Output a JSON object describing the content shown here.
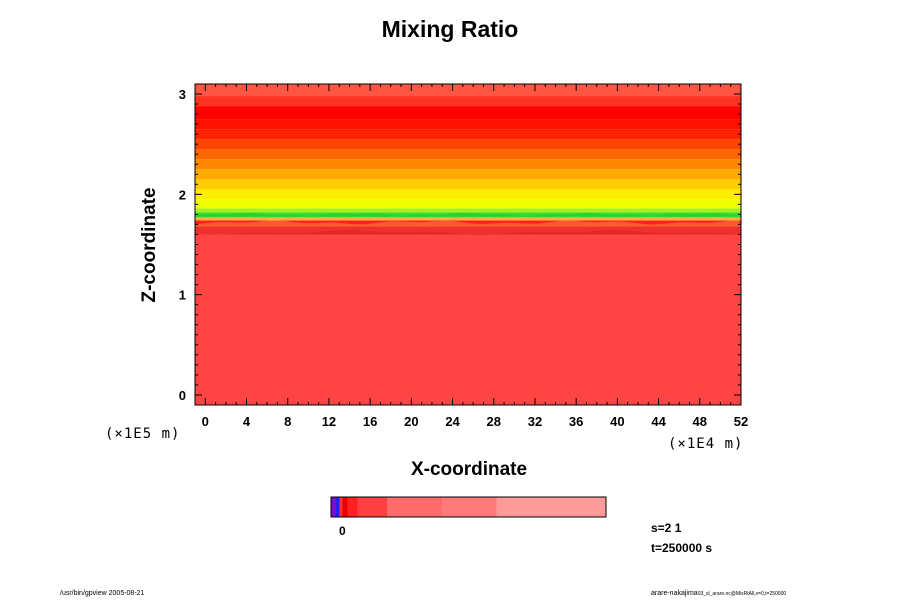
{
  "chart_data": {
    "type": "heatmap",
    "title": "Mixing Ratio",
    "xlabel": "X-coordinate",
    "ylabel": "Z-coordinate",
    "x_unit": "(×1E4 m)",
    "y_unit": "(×1E5 m)",
    "xlim": [
      -1,
      52
    ],
    "ylim": [
      -0.1,
      3.1
    ],
    "x_ticks": [
      "0",
      "4",
      "8",
      "12",
      "16",
      "20",
      "24",
      "28",
      "32",
      "36",
      "40",
      "44",
      "48",
      "52"
    ],
    "y_ticks": [
      "0",
      "1",
      "2",
      "3"
    ],
    "layers": [
      {
        "z": [
          -0.1,
          1.6
        ],
        "color": "#ff4444"
      },
      {
        "z": [
          1.6,
          1.68
        ],
        "color": "#f03030"
      },
      {
        "z": [
          1.68,
          1.74
        ],
        "color": "#ff2020"
      },
      {
        "z": [
          1.74,
          1.77
        ],
        "color": "#ffb03c"
      },
      {
        "z": [
          1.77,
          1.82
        ],
        "color": "#33dd33"
      },
      {
        "z": [
          1.82,
          1.86
        ],
        "color": "#aaee22"
      },
      {
        "z": [
          1.86,
          1.95
        ],
        "color": "#eeff00"
      },
      {
        "z": [
          1.95,
          2.05
        ],
        "color": "#ffee00"
      },
      {
        "z": [
          2.05,
          2.15
        ],
        "color": "#ffcc00"
      },
      {
        "z": [
          2.15,
          2.25
        ],
        "color": "#ffaa00"
      },
      {
        "z": [
          2.25,
          2.35
        ],
        "color": "#ff8800"
      },
      {
        "z": [
          2.35,
          2.45
        ],
        "color": "#ff6600"
      },
      {
        "z": [
          2.45,
          2.55
        ],
        "color": "#ff4400"
      },
      {
        "z": [
          2.55,
          2.65
        ],
        "color": "#ff2200"
      },
      {
        "z": [
          2.65,
          2.75
        ],
        "color": "#ff1100"
      },
      {
        "z": [
          2.75,
          2.88
        ],
        "color": "#ff0000"
      },
      {
        "z": [
          2.88,
          2.98
        ],
        "color": "#ff3322"
      },
      {
        "z": [
          2.98,
          3.1
        ],
        "color": "#ff5544"
      }
    ],
    "colorbar": {
      "colors": [
        "#7a0dcf",
        "#1a22ff",
        "#ff3030",
        "#e80000",
        "#ff2020",
        "#ff4040",
        "#ff6a6a",
        "#ff7a7a",
        "#ff9a9a"
      ],
      "widths": [
        1,
        0.7,
        0.6,
        1,
        2,
        6,
        11,
        11,
        22
      ],
      "zero_label": "0"
    }
  },
  "info": {
    "s": "s=2 1",
    "t": "t=250000 s"
  },
  "footer": {
    "left": "/usr/bin/gpview 2005-08-21",
    "right_main": "arare-nakajima",
    "right_small": "03_sl_arare.nc@MixRtAll,x=0,t=250000"
  }
}
